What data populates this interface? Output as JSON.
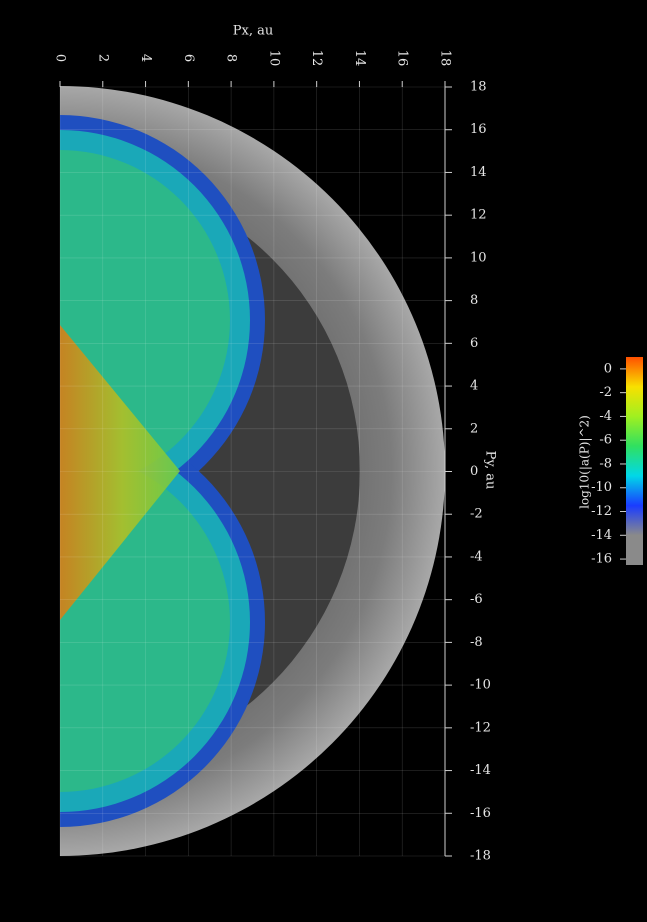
{
  "chart_data": {
    "type": "image",
    "xlabel": "Px, au",
    "ylabel": "Py, au",
    "xlim": [
      0,
      18
    ],
    "xticks": [
      0,
      2,
      4,
      6,
      8,
      10,
      12,
      14,
      16,
      18
    ],
    "ylim": [
      -18,
      18
    ],
    "yticks": [
      18,
      16,
      14,
      12,
      10,
      8,
      6,
      4,
      2,
      0,
      -2,
      -4,
      -6,
      -8,
      -10,
      -12,
      -14,
      -16,
      -18
    ],
    "grid": true,
    "colorbar": {
      "label": "log10(|a(P)|^2)",
      "lim": [
        -16.5,
        1
      ],
      "ticks": [
        0,
        -2,
        -4,
        -6,
        -8,
        -10,
        -12,
        -14,
        -16
      ],
      "colors": [
        "#8a8a8a",
        "#8a8a8a",
        "#1a3cff",
        "#00d8e8",
        "#30e060",
        "#a0f020",
        "#f8e000",
        "#ff5000"
      ]
    }
  }
}
